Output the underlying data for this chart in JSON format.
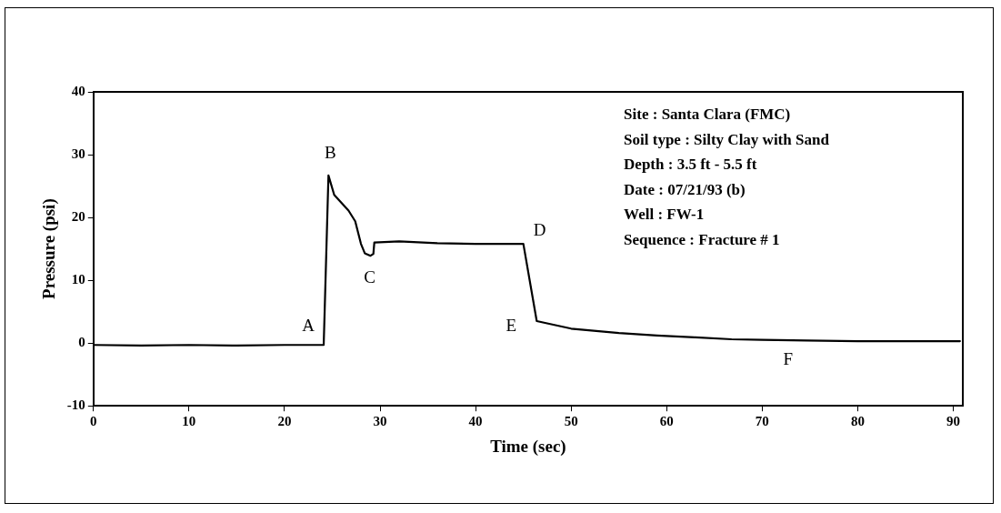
{
  "chart_data": {
    "type": "line",
    "xlabel": "Time (sec)",
    "ylabel": "Pressure (psi)",
    "xlim": [
      0,
      91
    ],
    "ylim": [
      -10,
      40
    ],
    "xticks": [
      0,
      10,
      20,
      30,
      40,
      50,
      60,
      70,
      80,
      90
    ],
    "yticks": [
      -10,
      0,
      10,
      20,
      30,
      40
    ],
    "grid": false,
    "legend": false,
    "marker": "none",
    "line_style": "solid",
    "series": [
      {
        "color": "#000000",
        "x": [
          0,
          5,
          10,
          15,
          20,
          24.1,
          24.2,
          24.6,
          25.2,
          26.7,
          27.4,
          28,
          28.4,
          29,
          29.3,
          29.4,
          32,
          36,
          40,
          44,
          45,
          46.4,
          50,
          55,
          59,
          63,
          66.8,
          70,
          74.7,
          80,
          84.5,
          90.7
        ],
        "values": [
          -0.3,
          -0.4,
          -0.3,
          -0.4,
          -0.3,
          -0.3,
          5,
          26.7,
          23.6,
          21.1,
          19.4,
          15.8,
          14.3,
          13.9,
          14.2,
          16,
          16.2,
          15.9,
          15.8,
          15.8,
          15.8,
          3.5,
          2.3,
          1.6,
          1.2,
          0.9,
          0.6,
          0.5,
          0.4,
          0.3,
          0.3,
          0.3
        ]
      }
    ],
    "annotations": [
      {
        "text": "A",
        "x": 24.1,
        "y": -0.3
      },
      {
        "text": "B",
        "x": 24.6,
        "y": 26.7
      },
      {
        "text": "C",
        "x": 29,
        "y": 13.9
      },
      {
        "text": "D",
        "x": 45,
        "y": 15.8
      },
      {
        "text": "E",
        "x": 46.4,
        "y": 3.5
      },
      {
        "text": "F",
        "x": 74.7,
        "y": 0.4
      },
      "Site : Santa Clara (FMC)",
      "Soil type : Silty Clay with Sand",
      "Depth : 3.5 ft - 5.5 ft",
      "Date : 07/21/93 (b)",
      "Well : FW-1",
      "Sequence : Fracture # 1"
    ]
  }
}
